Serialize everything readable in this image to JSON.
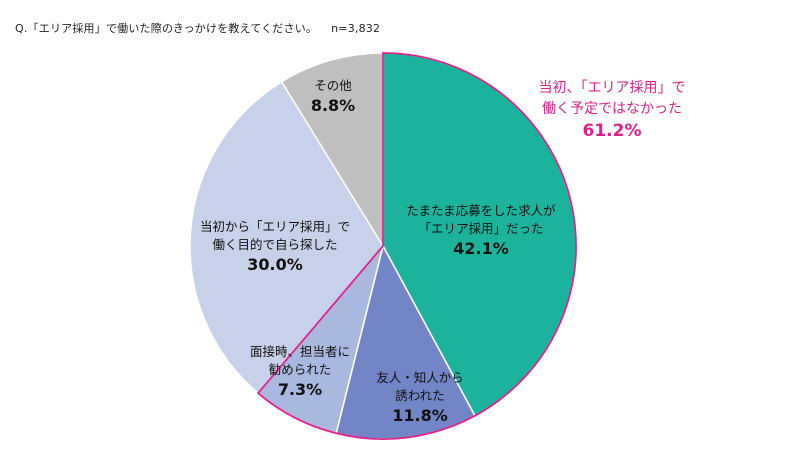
{
  "question": {
    "text": "Q.「エリア採用」で働いた際のきっかけを教えてください。",
    "n": "n=3,832"
  },
  "chart_data": {
    "type": "pie",
    "title": "Q.「エリア採用」で働いた際のきっかけを教えてください。",
    "slices": [
      {
        "lines": [
          "たまたま応募をした求人が",
          "「エリア採用」だった"
        ],
        "pct_label": "42.1%",
        "value": 42.1,
        "color": "#1bb39c"
      },
      {
        "lines": [
          "友人・知人から",
          "誘われた"
        ],
        "pct_label": "11.8%",
        "value": 11.8,
        "color": "#7285c6"
      },
      {
        "lines": [
          "面接時、担当者に",
          "勧められた"
        ],
        "pct_label": "7.3%",
        "value": 7.3,
        "color": "#a9b8de"
      },
      {
        "lines": [
          "当初から「エリア採用」で",
          "働く目的で自ら探した"
        ],
        "pct_label": "30.0%",
        "value": 30.0,
        "color": "#c8d1ea"
      },
      {
        "lines": [
          "その他"
        ],
        "pct_label": "8.8%",
        "value": 8.8,
        "color": "#bfbfbf"
      }
    ],
    "highlight": {
      "lines": [
        "当初、「エリア採用」で",
        "働く予定ではなかった"
      ],
      "pct_label": "61.2%",
      "value": 61.2,
      "color": "#e0218a"
    }
  }
}
